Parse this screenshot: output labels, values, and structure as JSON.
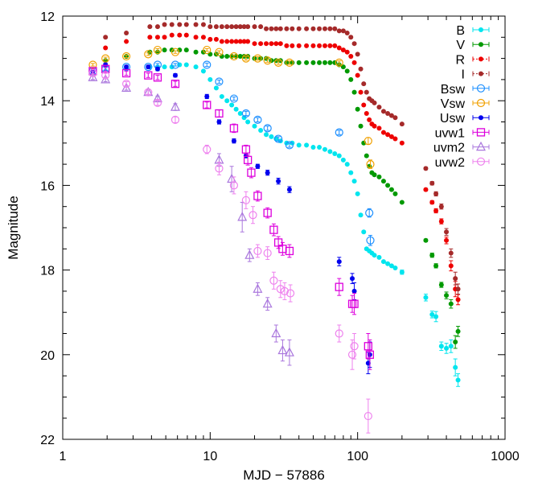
{
  "chart_data": {
    "type": "scatter",
    "xlabel": "MJD − 57886",
    "ylabel": "Magnitude",
    "xscale": "log",
    "xlim": [
      1,
      1000
    ],
    "ylim": [
      22,
      12
    ],
    "y_inverted": true,
    "xticks": [
      1,
      10,
      100,
      1000
    ],
    "xtick_labels": [
      "1",
      "10",
      "100",
      "1000"
    ],
    "yticks": [
      12,
      14,
      16,
      18,
      20,
      22
    ],
    "ytick_labels": [
      "12",
      "14",
      "16",
      "18",
      "20",
      "22"
    ],
    "grid": false,
    "legend_position": "top-right",
    "series": [
      {
        "name": "B",
        "color": "#00e5ee",
        "marker": "dot",
        "x": [
          1.95,
          2.7,
          3.9,
          4.4,
          4.9,
          5.5,
          6.2,
          6.9,
          8.0,
          9.0,
          10,
          11,
          12,
          13,
          14,
          15,
          16,
          17,
          18,
          20,
          22,
          24,
          26,
          28,
          30,
          33,
          36,
          40,
          45,
          50,
          55,
          60,
          65,
          70,
          75,
          80,
          85,
          90,
          95,
          100,
          105,
          110,
          115,
          120,
          125,
          130,
          140,
          150,
          160,
          170,
          180,
          200,
          290,
          320,
          340,
          370,
          400,
          430,
          460,
          480
        ],
        "y": [
          13.3,
          13.25,
          13.2,
          13.2,
          13.2,
          13.2,
          13.15,
          13.15,
          13.2,
          13.3,
          13.5,
          13.7,
          13.9,
          14.0,
          14.1,
          14.2,
          14.3,
          14.4,
          14.5,
          14.6,
          14.7,
          14.8,
          14.85,
          14.9,
          14.95,
          15.0,
          15.0,
          15.05,
          15.05,
          15.1,
          15.1,
          15.15,
          15.2,
          15.25,
          15.3,
          15.4,
          15.5,
          15.7,
          15.9,
          16.2,
          16.7,
          17.1,
          17.5,
          17.55,
          17.6,
          17.65,
          17.7,
          17.8,
          17.85,
          17.9,
          17.95,
          18.05,
          18.65,
          19.05,
          19.1,
          19.8,
          19.85,
          19.8,
          20.3,
          20.6
        ],
        "yerr": [
          0,
          0,
          0,
          0,
          0,
          0,
          0,
          0,
          0,
          0,
          0,
          0,
          0,
          0,
          0,
          0,
          0,
          0,
          0,
          0,
          0,
          0,
          0,
          0,
          0,
          0,
          0,
          0,
          0,
          0,
          0,
          0,
          0,
          0,
          0,
          0,
          0,
          0,
          0,
          0,
          0,
          0,
          0,
          0,
          0,
          0,
          0,
          0,
          0,
          0,
          0,
          0.05,
          0.08,
          0.08,
          0.12,
          0.1,
          0.12,
          0.15,
          0.2,
          0.15
        ]
      },
      {
        "name": "V",
        "color": "#009900",
        "marker": "dot",
        "x": [
          1.95,
          2.7,
          3.9,
          4.4,
          4.9,
          5.5,
          6.2,
          6.9,
          8.0,
          9.0,
          10,
          11,
          12,
          13,
          14,
          15,
          16,
          17,
          18,
          20,
          22,
          24,
          26,
          28,
          30,
          33,
          36,
          40,
          45,
          50,
          55,
          60,
          65,
          70,
          75,
          80,
          85,
          90,
          95,
          100,
          105,
          110,
          115,
          120,
          125,
          130,
          140,
          150,
          160,
          170,
          180,
          200,
          290,
          320,
          340,
          370,
          400,
          430,
          460,
          480
        ],
        "y": [
          13.05,
          12.95,
          12.85,
          12.85,
          12.8,
          12.8,
          12.8,
          12.8,
          12.85,
          12.85,
          12.9,
          12.9,
          12.95,
          12.95,
          12.95,
          12.95,
          12.95,
          12.95,
          12.95,
          13.0,
          13.0,
          13.0,
          13.05,
          13.05,
          13.05,
          13.1,
          13.1,
          13.1,
          13.1,
          13.1,
          13.1,
          13.1,
          13.1,
          13.1,
          13.15,
          13.2,
          13.3,
          13.5,
          13.8,
          14.2,
          14.6,
          15.0,
          15.3,
          15.55,
          15.7,
          15.75,
          15.8,
          15.9,
          16.0,
          16.1,
          16.2,
          16.4,
          17.3,
          17.65,
          17.9,
          18.35,
          18.6,
          18.8,
          19.7,
          19.45
        ],
        "yerr": [
          0,
          0,
          0,
          0,
          0,
          0,
          0,
          0,
          0,
          0,
          0,
          0,
          0,
          0,
          0,
          0,
          0,
          0,
          0,
          0,
          0,
          0,
          0,
          0,
          0,
          0,
          0,
          0,
          0,
          0,
          0,
          0,
          0,
          0,
          0,
          0,
          0,
          0,
          0,
          0,
          0,
          0,
          0,
          0,
          0,
          0,
          0,
          0,
          0,
          0,
          0,
          0,
          0.03,
          0.05,
          0.05,
          0.06,
          0.08,
          0.1,
          0.15,
          0.12
        ]
      },
      {
        "name": "R",
        "color": "#ee0000",
        "marker": "dot",
        "x": [
          1.95,
          2.7,
          3.9,
          4.4,
          4.9,
          5.5,
          6.2,
          6.9,
          8.0,
          9.0,
          10,
          11,
          12,
          13,
          14,
          15,
          16,
          17,
          18,
          20,
          22,
          24,
          26,
          28,
          30,
          33,
          36,
          40,
          45,
          50,
          55,
          60,
          65,
          70,
          75,
          80,
          85,
          90,
          95,
          100,
          105,
          110,
          115,
          120,
          125,
          130,
          140,
          150,
          160,
          170,
          180,
          200,
          290,
          320,
          340,
          370,
          400,
          430,
          460,
          480
        ],
        "y": [
          12.75,
          12.6,
          12.5,
          12.5,
          12.5,
          12.45,
          12.45,
          12.45,
          12.5,
          12.5,
          12.55,
          12.55,
          12.6,
          12.6,
          12.6,
          12.6,
          12.6,
          12.6,
          12.6,
          12.65,
          12.65,
          12.65,
          12.65,
          12.65,
          12.65,
          12.7,
          12.7,
          12.7,
          12.7,
          12.7,
          12.7,
          12.7,
          12.7,
          12.7,
          12.75,
          12.8,
          12.85,
          12.95,
          13.1,
          13.4,
          13.8,
          14.1,
          14.3,
          14.45,
          14.55,
          14.6,
          14.65,
          14.75,
          14.8,
          14.85,
          14.9,
          15.0,
          16.1,
          16.4,
          16.6,
          16.85,
          17.3,
          17.9,
          18.45,
          18.7
        ],
        "yerr": [
          0,
          0,
          0,
          0,
          0,
          0,
          0,
          0,
          0,
          0,
          0,
          0,
          0,
          0,
          0,
          0,
          0,
          0,
          0,
          0,
          0,
          0,
          0,
          0,
          0,
          0,
          0,
          0,
          0,
          0,
          0,
          0,
          0,
          0,
          0,
          0,
          0,
          0,
          0,
          0,
          0,
          0,
          0,
          0,
          0,
          0,
          0,
          0,
          0,
          0,
          0,
          0,
          0.03,
          0.04,
          0.05,
          0.06,
          0.08,
          0.12,
          0.18,
          0.12
        ]
      },
      {
        "name": "I",
        "color": "#a52a2a",
        "marker": "dot",
        "x": [
          1.95,
          2.7,
          3.9,
          4.4,
          4.9,
          5.5,
          6.2,
          6.9,
          8.0,
          9.0,
          10,
          11,
          12,
          13,
          14,
          15,
          16,
          17,
          18,
          20,
          22,
          24,
          26,
          28,
          30,
          33,
          36,
          40,
          45,
          50,
          55,
          60,
          65,
          70,
          75,
          80,
          85,
          90,
          95,
          100,
          105,
          110,
          115,
          120,
          125,
          130,
          140,
          150,
          160,
          170,
          180,
          200,
          290,
          320,
          340,
          370,
          400,
          430,
          460,
          480
        ],
        "y": [
          12.5,
          12.4,
          12.25,
          12.25,
          12.2,
          12.2,
          12.2,
          12.2,
          12.2,
          12.2,
          12.25,
          12.25,
          12.25,
          12.25,
          12.25,
          12.25,
          12.25,
          12.25,
          12.25,
          12.25,
          12.25,
          12.3,
          12.3,
          12.3,
          12.3,
          12.3,
          12.3,
          12.3,
          12.3,
          12.3,
          12.3,
          12.3,
          12.3,
          12.3,
          12.35,
          12.35,
          12.4,
          12.5,
          12.65,
          12.9,
          13.25,
          13.6,
          13.8,
          13.95,
          14.0,
          14.05,
          14.15,
          14.25,
          14.3,
          14.35,
          14.4,
          14.55,
          15.6,
          15.95,
          16.2,
          16.5,
          17.1,
          17.6,
          18.2,
          18.45
        ],
        "yerr": [
          0,
          0,
          0,
          0,
          0,
          0,
          0,
          0,
          0,
          0,
          0,
          0,
          0,
          0,
          0,
          0,
          0,
          0,
          0,
          0,
          0,
          0,
          0,
          0,
          0,
          0,
          0,
          0,
          0,
          0,
          0,
          0,
          0,
          0,
          0,
          0,
          0,
          0,
          0,
          0,
          0,
          0,
          0,
          0,
          0,
          0,
          0,
          0,
          0,
          0,
          0,
          0,
          0.03,
          0.04,
          0.05,
          0.06,
          0.08,
          0.1,
          0.15,
          0.12
        ]
      },
      {
        "name": "Bsw",
        "color": "#1e90ff",
        "marker": "open-circle",
        "x": [
          1.6,
          1.95,
          2.7,
          3.8,
          4.4,
          5.8,
          9.5,
          11.5,
          14.5,
          17.5,
          21,
          24.5,
          29,
          34.5,
          75,
          120,
          122
        ],
        "y": [
          13.3,
          13.25,
          13.2,
          13.2,
          13.15,
          13.15,
          13.15,
          13.55,
          13.95,
          14.3,
          14.45,
          14.65,
          14.9,
          15.05,
          14.75,
          16.65,
          17.3
        ],
        "yerr": [
          0.03,
          0.03,
          0.03,
          0.03,
          0.03,
          0.03,
          0.04,
          0.04,
          0.04,
          0.05,
          0.05,
          0.05,
          0.05,
          0.05,
          0.05,
          0.1,
          0.12
        ]
      },
      {
        "name": "Vsw",
        "color": "#f0a000",
        "marker": "open-circle",
        "x": [
          1.6,
          1.95,
          2.7,
          3.8,
          4.4,
          5.8,
          9.5,
          11.5,
          14.5,
          17.5,
          21,
          24.5,
          29,
          34.5,
          75,
          118,
          122
        ],
        "y": [
          13.15,
          13.0,
          12.95,
          12.9,
          12.8,
          12.85,
          12.8,
          12.85,
          12.95,
          13.0,
          13.0,
          13.05,
          13.1,
          13.1,
          13.1,
          14.95,
          15.5
        ],
        "yerr": [
          0.03,
          0.03,
          0.03,
          0.03,
          0.03,
          0.03,
          0.03,
          0.03,
          0.03,
          0.04,
          0.04,
          0.04,
          0.04,
          0.04,
          0.04,
          0.08,
          0.1
        ]
      },
      {
        "name": "Usw",
        "color": "#0000ee",
        "marker": "dot",
        "x": [
          1.6,
          1.95,
          2.7,
          3.8,
          4.4,
          5.8,
          9.5,
          11.5,
          14.5,
          17.5,
          21,
          24.5,
          29,
          34.5,
          75,
          92,
          95,
          118,
          121
        ],
        "y": [
          13.3,
          13.15,
          13.2,
          13.2,
          13.25,
          13.4,
          13.9,
          14.5,
          14.95,
          15.3,
          15.55,
          15.7,
          15.9,
          16.1,
          17.8,
          18.2,
          18.5,
          20.2,
          20.0
        ],
        "yerr": [
          0.03,
          0.04,
          0.04,
          0.04,
          0.04,
          0.04,
          0.05,
          0.05,
          0.05,
          0.05,
          0.05,
          0.06,
          0.07,
          0.07,
          0.1,
          0.12,
          0.2,
          0.25,
          0.3
        ]
      },
      {
        "name": "uvw1",
        "color": "#dd00dd",
        "marker": "open-square",
        "x": [
          1.6,
          1.95,
          2.7,
          3.8,
          4.4,
          5.8,
          9.5,
          11.5,
          14.5,
          17.5,
          18,
          19,
          21,
          24.5,
          27,
          29,
          31,
          34.5,
          75,
          92,
          95,
          118,
          121
        ],
        "y": [
          13.3,
          13.25,
          13.35,
          13.4,
          13.45,
          13.6,
          14.1,
          14.3,
          14.65,
          15.15,
          15.4,
          15.7,
          16.25,
          16.65,
          17.05,
          17.35,
          17.5,
          17.55,
          18.4,
          18.8,
          18.8,
          19.8,
          20.0
        ],
        "yerr": [
          0.05,
          0.05,
          0.05,
          0.05,
          0.05,
          0.06,
          0.07,
          0.08,
          0.1,
          0.1,
          0.12,
          0.12,
          0.12,
          0.12,
          0.14,
          0.14,
          0.15,
          0.15,
          0.2,
          0.2,
          0.25,
          0.3,
          0.35
        ]
      },
      {
        "name": "uvm2",
        "color": "#aa77dd",
        "marker": "open-triangle",
        "x": [
          1.6,
          1.95,
          2.7,
          3.8,
          4.4,
          5.8,
          11.5,
          14.0,
          16.5,
          18.5,
          21,
          24.5,
          28,
          31,
          34.5
        ],
        "y": [
          13.45,
          13.5,
          13.7,
          13.8,
          13.95,
          14.15,
          15.4,
          15.85,
          16.75,
          17.65,
          18.45,
          18.8,
          19.5,
          19.9,
          19.95
        ],
        "yerr": [
          0.05,
          0.05,
          0.05,
          0.05,
          0.06,
          0.08,
          0.15,
          0.3,
          0.35,
          0.15,
          0.15,
          0.15,
          0.2,
          0.25,
          0.3
        ]
      },
      {
        "name": "uvw2",
        "color": "#ee82ee",
        "marker": "open-circle",
        "x": [
          1.6,
          1.95,
          2.7,
          3.8,
          4.4,
          5.8,
          9.5,
          11.5,
          14.5,
          17.5,
          19.5,
          21,
          24.5,
          27,
          30,
          32,
          35,
          75,
          92,
          95,
          118
        ],
        "y": [
          13.35,
          13.4,
          13.6,
          13.8,
          14.05,
          14.45,
          15.15,
          15.6,
          16.0,
          16.35,
          16.7,
          17.55,
          17.6,
          18.25,
          18.45,
          18.5,
          18.55,
          19.5,
          20.0,
          19.8,
          21.45
        ],
        "yerr": [
          0.04,
          0.05,
          0.05,
          0.05,
          0.06,
          0.07,
          0.1,
          0.15,
          0.2,
          0.2,
          0.2,
          0.15,
          0.15,
          0.2,
          0.2,
          0.2,
          0.2,
          0.2,
          0.35,
          0.3,
          0.4
        ]
      }
    ]
  }
}
